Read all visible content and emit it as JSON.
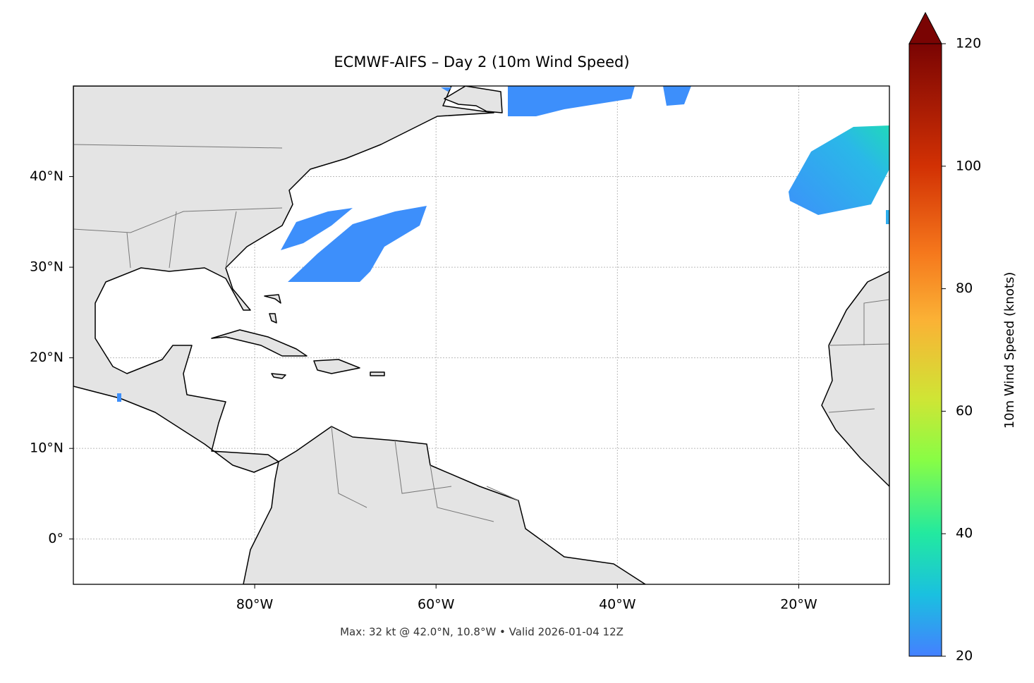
{
  "map": {
    "title": "ECMWF-AIFS – Day 2 (10m Wind Speed)",
    "footer": "Max: 32 kt @ 42.0°N, 10.8°W • Valid 2026-01-04 12Z",
    "xlim": [
      -100,
      -10
    ],
    "ylim": [
      -5,
      50
    ],
    "xticks": [
      {
        "value": -80,
        "label": "80°W"
      },
      {
        "value": -60,
        "label": "60°W"
      },
      {
        "value": -40,
        "label": "40°W"
      },
      {
        "value": -20,
        "label": "20°W"
      }
    ],
    "yticks": [
      {
        "value": 0,
        "label": "0°"
      },
      {
        "value": 10,
        "label": "10°N"
      },
      {
        "value": 20,
        "label": "20°N"
      },
      {
        "value": 30,
        "label": "30°N"
      },
      {
        "value": 40,
        "label": "40°N"
      }
    ],
    "grid": true
  },
  "colorbar": {
    "label": "10m Wind Speed (knots)",
    "lim": [
      20,
      120
    ],
    "ticks": [
      20,
      40,
      60,
      80,
      100,
      120
    ],
    "extend": "max"
  }
}
